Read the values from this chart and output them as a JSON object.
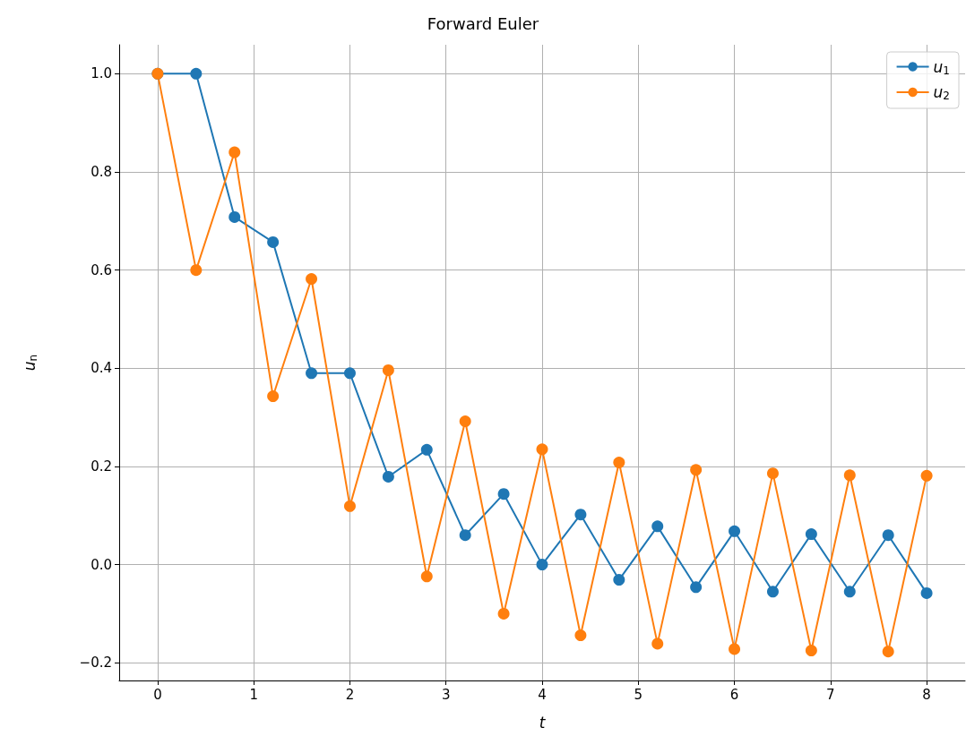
{
  "chart_data": {
    "type": "line",
    "title": "Forward Euler",
    "xlabel": "t",
    "ylabel": "u$_{n}$",
    "x": [
      0,
      0.4,
      0.8,
      1.2,
      1.6,
      2.0,
      2.4,
      2.8,
      3.2,
      3.6,
      4.0,
      4.4,
      4.8,
      5.2,
      5.6,
      6.0,
      6.4,
      6.8,
      7.2,
      7.6,
      8.0
    ],
    "series": [
      {
        "name": "u$_{1}$",
        "color": "#1f77b4",
        "values": [
          1.0,
          1.0,
          0.708,
          0.657,
          0.39,
          0.39,
          0.179,
          0.234,
          0.06,
          0.144,
          0.0,
          0.102,
          -0.031,
          0.078,
          -0.046,
          0.068,
          -0.055,
          0.062,
          -0.055,
          0.06,
          -0.058
        ]
      },
      {
        "name": "u$_{2}$",
        "color": "#ff7f0e",
        "values": [
          1.0,
          0.6,
          0.84,
          0.343,
          0.582,
          0.119,
          0.396,
          -0.024,
          0.292,
          -0.1,
          0.235,
          -0.144,
          0.208,
          -0.161,
          0.193,
          -0.172,
          0.186,
          -0.175,
          0.182,
          -0.177,
          0.181
        ]
      }
    ],
    "xlim": [
      -0.4,
      8.4
    ],
    "xticks": [
      0,
      1,
      2,
      3,
      4,
      5,
      6,
      7,
      8
    ],
    "ylim": [
      -0.236,
      1.059
    ],
    "yticks": [
      {
        "value": -0.2,
        "label": "−0.2"
      },
      {
        "value": 0,
        "label": "0.0"
      },
      {
        "value": 0.2,
        "label": "0.2"
      },
      {
        "value": 0.4,
        "label": "0.4"
      },
      {
        "value": 0.6,
        "label": "0.6"
      },
      {
        "value": 0.8,
        "label": "0.8"
      },
      {
        "value": 1.0,
        "label": "1.0"
      }
    ],
    "grid": true,
    "legend": "top right",
    "marker": "circle",
    "line_style": "solid"
  }
}
